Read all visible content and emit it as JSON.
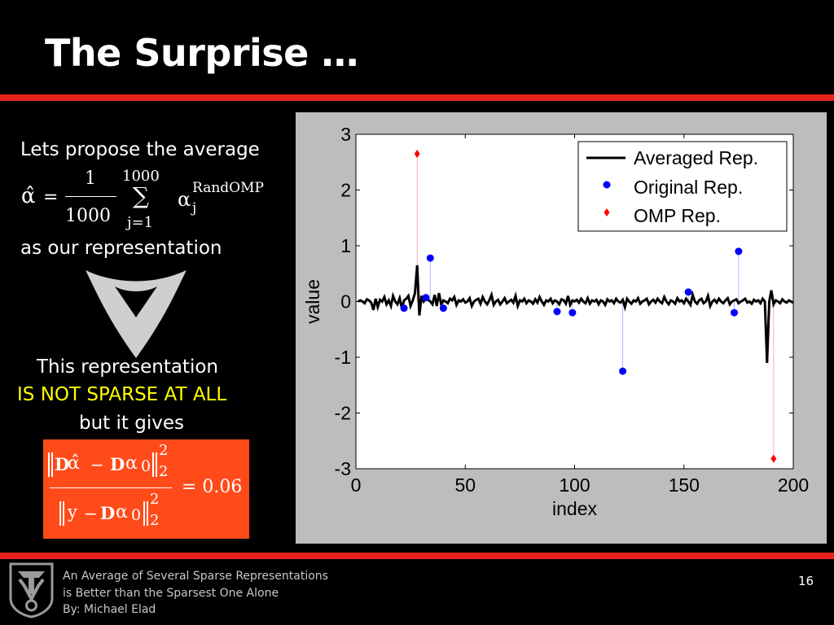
{
  "slide": {
    "title": "The Surprise …",
    "page_number": "16"
  },
  "left": {
    "line1": "Lets propose the average",
    "line2": "as our representation",
    "line3": "This representation",
    "line4": "IS NOT SPARSE AT ALL",
    "line5": "but it gives"
  },
  "equation1": {
    "lhs": "α̂",
    "equals": "=",
    "numerator": "1",
    "denominator": "1000",
    "sum_top": "1000",
    "sum_symbol": "∑",
    "sum_bottom": "j=1",
    "alpha": "α",
    "sub": "j",
    "sup": "RandOMP"
  },
  "equation2": {
    "num_D": "D",
    "num_alphahat": "α̂",
    "num_minus": "−",
    "num_D2": "D",
    "num_alpha": "α",
    "num_zero": "0",
    "num_sup": "2",
    "num_sub": "2",
    "den_y": "y",
    "den_minus": "−",
    "den_D": "D",
    "den_alpha": "α",
    "den_zero": "0",
    "den_sup": "2",
    "den_sub": "2",
    "result": "= 0.06"
  },
  "footer": {
    "line1": "An Average of Several Sparse Representations",
    "line2": "is Better than the Sparsest One Alone",
    "line3": "By: Michael Elad"
  },
  "colors": {
    "accent_red": "#e8231c",
    "formula_bg": "#ff4a1a",
    "original_rep": "#0000ff",
    "omp_rep": "#ff0000",
    "averaged_rep": "#000000",
    "highlight_text": "#ffff00"
  },
  "chart_data": {
    "type": "line",
    "xlabel": "index",
    "ylabel": "value",
    "xlim": [
      0,
      200
    ],
    "ylim": [
      -3,
      3
    ],
    "xticks": [
      "0",
      "50",
      "100",
      "150",
      "200"
    ],
    "yticks": [
      "3",
      "2",
      "1",
      "0",
      "-1",
      "-2",
      "-3"
    ],
    "grid": false,
    "legend_position": "top-right",
    "legend": [
      "Averaged Rep.",
      "Original Rep.",
      "OMP Rep."
    ],
    "series": [
      {
        "name": "Averaged Rep.",
        "style": "line",
        "x": [
          1,
          2,
          3,
          4,
          5,
          6,
          7,
          8,
          9,
          10,
          11,
          12,
          13,
          14,
          15,
          16,
          17,
          18,
          19,
          20,
          21,
          22,
          23,
          24,
          25,
          26,
          27,
          28,
          29,
          30,
          31,
          32,
          33,
          34,
          35,
          36,
          37,
          38,
          39,
          40,
          41,
          42,
          43,
          44,
          45,
          46,
          47,
          48,
          49,
          50,
          51,
          52,
          53,
          54,
          55,
          56,
          57,
          58,
          59,
          60,
          61,
          62,
          63,
          64,
          65,
          66,
          67,
          68,
          69,
          70,
          71,
          72,
          73,
          74,
          75,
          76,
          77,
          78,
          79,
          80,
          81,
          82,
          83,
          84,
          85,
          86,
          87,
          88,
          89,
          90,
          91,
          92,
          93,
          94,
          95,
          96,
          97,
          98,
          99,
          100,
          101,
          102,
          103,
          104,
          105,
          106,
          107,
          108,
          109,
          110,
          111,
          112,
          113,
          114,
          115,
          116,
          117,
          118,
          119,
          120,
          121,
          122,
          123,
          124,
          125,
          126,
          127,
          128,
          129,
          130,
          131,
          132,
          133,
          134,
          135,
          136,
          137,
          138,
          139,
          140,
          141,
          142,
          143,
          144,
          145,
          146,
          147,
          148,
          149,
          150,
          151,
          152,
          153,
          154,
          155,
          156,
          157,
          158,
          159,
          160,
          161,
          162,
          163,
          164,
          165,
          166,
          167,
          168,
          169,
          170,
          171,
          172,
          173,
          174,
          175,
          176,
          177,
          178,
          179,
          180,
          181,
          182,
          183,
          184,
          185,
          186,
          187,
          188,
          189,
          190,
          191,
          192,
          193,
          194,
          195,
          196,
          197,
          198,
          199,
          200
        ],
        "y": [
          0.0,
          0.02,
          0.0,
          -0.03,
          0.04,
          0.02,
          -0.02,
          -0.15,
          0.05,
          -0.1,
          0.03,
          0.0,
          0.08,
          -0.05,
          0.02,
          -0.08,
          0.1,
          0.0,
          -0.05,
          0.06,
          -0.12,
          0.02,
          0.05,
          0.1,
          -0.08,
          0.02,
          0.15,
          0.65,
          -0.25,
          0.1,
          0.0,
          0.05,
          0.03,
          0.0,
          -0.05,
          0.12,
          -0.08,
          0.15,
          -0.05,
          0.02,
          0.0,
          -0.03,
          0.05,
          0.02,
          0.08,
          -0.06,
          0.02,
          0.0,
          0.04,
          -0.02,
          0.0,
          0.06,
          -0.08,
          0.0,
          0.03,
          0.05,
          -0.04,
          0.08,
          0.0,
          -0.05,
          0.02,
          0.12,
          -0.06,
          0.0,
          0.03,
          -0.05,
          0.0,
          0.06,
          -0.03,
          0.0,
          0.03,
          -0.02,
          0.1,
          -0.08,
          0.02,
          0.0,
          0.05,
          -0.03,
          0.02,
          0.0,
          -0.04,
          0.04,
          -0.02,
          0.08,
          0.0,
          -0.06,
          0.02,
          0.0,
          0.05,
          -0.03,
          0.02,
          0.0,
          -0.05,
          0.04,
          0.02,
          -0.04,
          0.1,
          -0.06,
          0.02,
          0.0,
          0.03,
          -0.02,
          0.05,
          0.0,
          -0.03,
          0.06,
          -0.04,
          0.02,
          0.0,
          0.03,
          -0.05,
          0.02,
          0.0,
          -0.06,
          0.04,
          0.0,
          0.02,
          -0.03,
          0.05,
          0.0,
          -0.02,
          0.03,
          -0.1,
          0.05,
          0.0,
          -0.04,
          0.02,
          0.0,
          0.06,
          -0.04,
          0.0,
          0.02,
          0.05,
          -0.05,
          0.0,
          0.03,
          -0.02,
          0.05,
          0.0,
          -0.03,
          0.08,
          0.0,
          -0.05,
          0.02,
          0.0,
          -0.04,
          0.06,
          0.0,
          0.02,
          -0.03,
          0.05,
          0.0,
          -0.06,
          0.12,
          0.0,
          -0.04,
          0.02,
          0.05,
          -0.03,
          0.0,
          0.1,
          -0.08,
          0.0,
          0.03,
          -0.02,
          0.05,
          0.0,
          -0.03,
          0.02,
          0.06,
          -0.05,
          0.0,
          0.02,
          0.04,
          -0.03,
          0.0,
          0.02,
          0.05,
          -0.02,
          0.0,
          -0.04,
          0.03,
          0.0,
          0.02,
          -0.03,
          0.05,
          0.0,
          -1.1,
          0.0,
          0.2,
          -0.05,
          0.02,
          0.0,
          -0.03,
          0.04,
          0.0,
          -0.02,
          0.02,
          0.0,
          -0.02
        ]
      },
      {
        "name": "Original Rep.",
        "style": "markers",
        "x": [
          22,
          32,
          34,
          40,
          92,
          99,
          122,
          152,
          173,
          175
        ],
        "y": [
          -0.12,
          0.07,
          0.78,
          -0.12,
          -0.18,
          -0.2,
          -1.25,
          0.17,
          -0.2,
          0.9
        ]
      },
      {
        "name": "OMP Rep.",
        "style": "markers",
        "x": [
          28,
          191
        ],
        "y": [
          2.65,
          -2.82
        ]
      }
    ]
  }
}
